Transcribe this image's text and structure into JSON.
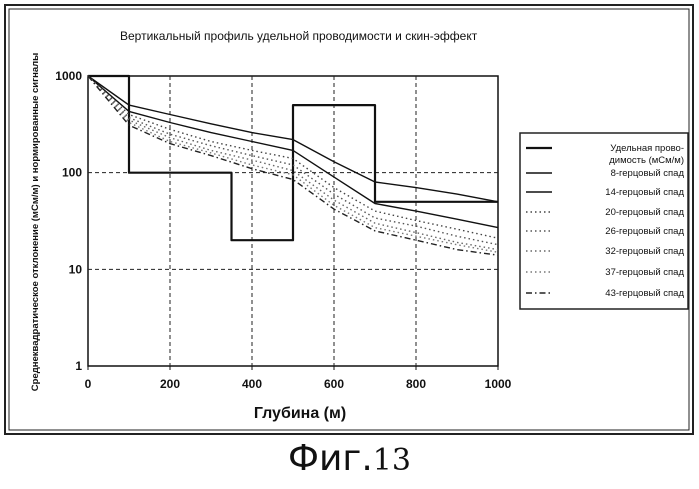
{
  "figure_caption": {
    "label": "Фиг.",
    "number": "13"
  },
  "chart_data": {
    "type": "line",
    "title": "Вертикальный профиль удельной проводимости и скин-эффект",
    "xlabel": "Глубина (м)",
    "ylabel": "Среднеквадратическое отклонение (мСм/м) и нормированные сигналы",
    "xlim": [
      0,
      1000
    ],
    "ylim": [
      1,
      1000
    ],
    "y_scale": "log",
    "x_ticks": [
      0,
      200,
      400,
      600,
      800,
      1000
    ],
    "x_tick_labels": [
      "0",
      "200",
      "400",
      "600",
      "800",
      "1000"
    ],
    "y_ticks": [
      1,
      10,
      100,
      1000
    ],
    "y_tick_labels": [
      "1",
      "10",
      "100",
      "1000"
    ],
    "grid": true,
    "legend_position": "right",
    "series": [
      {
        "name": "Удельная прово-димость (мСм/м)",
        "style": "step",
        "color": "#111111",
        "x": [
          0,
          100,
          100,
          350,
          350,
          500,
          500,
          700,
          700,
          1000
        ],
        "y": [
          1000,
          1000,
          100,
          100,
          20,
          20,
          500,
          500,
          50,
          50
        ]
      },
      {
        "name": "8-герцовый спад",
        "style": "solid",
        "color": "#111111",
        "x": [
          0,
          100,
          200,
          300,
          400,
          500,
          600,
          700,
          800,
          900,
          1000
        ],
        "y": [
          1000,
          500,
          400,
          320,
          260,
          220,
          130,
          80,
          70,
          60,
          50
        ]
      },
      {
        "name": "14-герцовый спад",
        "style": "solid",
        "color": "#111111",
        "x": [
          0,
          100,
          200,
          300,
          400,
          500,
          600,
          700,
          800,
          900,
          1000
        ],
        "y": [
          1000,
          430,
          330,
          260,
          210,
          170,
          90,
          48,
          40,
          33,
          27
        ]
      },
      {
        "name": "20-герцовый спад",
        "style": "dotted",
        "color": "#444444",
        "x": [
          0,
          100,
          200,
          300,
          400,
          500,
          600,
          700,
          800,
          900,
          1000
        ],
        "y": [
          1000,
          400,
          280,
          210,
          170,
          140,
          70,
          40,
          32,
          26,
          21
        ]
      },
      {
        "name": "26-герцовый спад",
        "style": "dotted",
        "color": "#555555",
        "x": [
          0,
          100,
          200,
          300,
          400,
          500,
          600,
          700,
          800,
          900,
          1000
        ],
        "y": [
          1000,
          370,
          250,
          190,
          150,
          120,
          60,
          34,
          28,
          22,
          18
        ]
      },
      {
        "name": "32-герцовый спад",
        "style": "dotted",
        "color": "#666666",
        "x": [
          0,
          100,
          200,
          300,
          400,
          500,
          600,
          700,
          800,
          900,
          1000
        ],
        "y": [
          1000,
          350,
          230,
          170,
          135,
          105,
          52,
          30,
          24,
          19,
          16
        ]
      },
      {
        "name": "37-герцовый спад",
        "style": "dotted",
        "color": "#777777",
        "x": [
          0,
          100,
          200,
          300,
          400,
          500,
          600,
          700,
          800,
          900,
          1000
        ],
        "y": [
          1000,
          330,
          210,
          160,
          120,
          95,
          46,
          27,
          22,
          18,
          15
        ]
      },
      {
        "name": "43-герцовый спад",
        "style": "dashdot",
        "color": "#222222",
        "x": [
          0,
          100,
          200,
          300,
          400,
          500,
          600,
          700,
          800,
          900,
          1000
        ],
        "y": [
          1000,
          310,
          200,
          150,
          110,
          85,
          42,
          25,
          20,
          16,
          14
        ]
      }
    ]
  }
}
